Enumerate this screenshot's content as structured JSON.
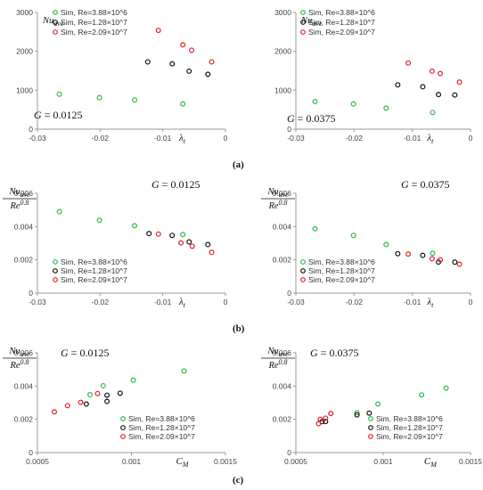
{
  "captions": [
    "(a)",
    "(b)",
    "(c)"
  ],
  "chart_data": [
    {
      "id": "a1",
      "type": "scatter",
      "ylabel": "Nu_ave",
      "xlabel": "λ_t",
      "annotation": "G = 0.0125",
      "xlim": [
        -0.03,
        0
      ],
      "ylim": [
        0,
        3000
      ],
      "xticks": [
        "-0.03",
        "-0.02",
        "-0.01",
        "0"
      ],
      "xtick_values": [
        -0.03,
        -0.02,
        -0.01,
        0
      ],
      "yticks": [
        "0",
        "1000",
        "2000",
        "3000"
      ],
      "ytick_values": [
        0,
        1000,
        2000,
        3000
      ],
      "legend_position": "top-left",
      "series": [
        {
          "name": "Sim, Re=3.88×10^6",
          "color": "#2db84b",
          "points": [
            [
              -0.0265,
              900
            ],
            [
              -0.0201,
              810
            ],
            [
              -0.0145,
              750
            ],
            [
              -0.0068,
              650
            ]
          ]
        },
        {
          "name": "Sim, Re=1.28×10^7",
          "color": "#111111",
          "points": [
            [
              -0.0124,
              1730
            ],
            [
              -0.0085,
              1680
            ],
            [
              -0.0058,
              1490
            ],
            [
              -0.0028,
              1410
            ]
          ]
        },
        {
          "name": "Sim, Re=2.09×10^7",
          "color": "#e0202a",
          "points": [
            [
              -0.0107,
              2540
            ],
            [
              -0.0068,
              2170
            ],
            [
              -0.0054,
              2030
            ],
            [
              -0.0022,
              1730
            ]
          ]
        }
      ]
    },
    {
      "id": "a2",
      "type": "scatter",
      "ylabel": "Nu_ave",
      "xlabel": "λ_t",
      "annotation": "G = 0.0375",
      "xlim": [
        -0.03,
        0
      ],
      "ylim": [
        0,
        3000
      ],
      "xticks": [
        "-0.03",
        "-0.02",
        "-0.01",
        "0"
      ],
      "xtick_values": [
        -0.03,
        -0.02,
        -0.01,
        0
      ],
      "yticks": [
        "0",
        "1000",
        "2000",
        "3000"
      ],
      "ytick_values": [
        0,
        1000,
        2000,
        3000
      ],
      "legend_position": "top-left",
      "series": [
        {
          "name": "Sim, Re=3.88×10^6",
          "color": "#2db84b",
          "points": [
            [
              -0.0267,
              710
            ],
            [
              -0.0201,
              650
            ],
            [
              -0.0145,
              540
            ],
            [
              -0.0065,
              430
            ]
          ]
        },
        {
          "name": "Sim, Re=1.28×10^7",
          "color": "#111111",
          "points": [
            [
              -0.0125,
              1140
            ],
            [
              -0.0082,
              1090
            ],
            [
              -0.0055,
              890
            ],
            [
              -0.0027,
              880
            ]
          ]
        },
        {
          "name": "Sim, Re=2.09×10^7",
          "color": "#e0202a",
          "points": [
            [
              -0.0107,
              1700
            ],
            [
              -0.0066,
              1490
            ],
            [
              -0.0052,
              1430
            ],
            [
              -0.0019,
              1210
            ]
          ]
        }
      ]
    },
    {
      "id": "b1",
      "type": "scatter",
      "ylabel": "Nu_ave / Re^0.8",
      "xlabel": "λ_t",
      "annotation": "G = 0.0125",
      "xlim": [
        -0.03,
        0
      ],
      "ylim": [
        0,
        0.006
      ],
      "xticks": [
        "-0.03",
        "-0.02",
        "-0.01",
        "0"
      ],
      "xtick_values": [
        -0.03,
        -0.02,
        -0.01,
        0
      ],
      "yticks": [
        "0",
        "0.002",
        "0.004",
        "0.006"
      ],
      "ytick_values": [
        0,
        0.002,
        0.004,
        0.006
      ],
      "legend_position": "bottom-left",
      "series": [
        {
          "name": "Sim, Re=3.88×10^6",
          "color": "#2db84b",
          "points": [
            [
              -0.0265,
              0.0049
            ],
            [
              -0.0201,
              0.00438
            ],
            [
              -0.0145,
              0.00405
            ],
            [
              -0.0068,
              0.00352
            ]
          ]
        },
        {
          "name": "Sim, Re=1.28×10^7",
          "color": "#111111",
          "points": [
            [
              -0.0122,
              0.00358
            ],
            [
              -0.0085,
              0.00347
            ],
            [
              -0.0058,
              0.00308
            ],
            [
              -0.0028,
              0.00292
            ]
          ]
        },
        {
          "name": "Sim, Re=2.09×10^7",
          "color": "#e0202a",
          "points": [
            [
              -0.0107,
              0.00355
            ],
            [
              -0.0071,
              0.00302
            ],
            [
              -0.0053,
              0.00282
            ],
            [
              -0.0022,
              0.00245
            ]
          ]
        }
      ]
    },
    {
      "id": "b2",
      "type": "scatter",
      "ylabel": "Nu_ave / Re^0.8",
      "xlabel": "λ_t",
      "annotation": "G = 0.0375",
      "xlim": [
        -0.03,
        0
      ],
      "ylim": [
        0,
        0.006
      ],
      "xticks": [
        "-0.03",
        "-0.02",
        "-0.01",
        "0"
      ],
      "xtick_values": [
        -0.03,
        -0.02,
        -0.01,
        0
      ],
      "yticks": [
        "0",
        "0.002",
        "0.004",
        "0.006"
      ],
      "ytick_values": [
        0,
        0.002,
        0.004,
        0.006
      ],
      "legend_position": "bottom-left",
      "series": [
        {
          "name": "Sim, Re=3.88×10^6",
          "color": "#2db84b",
          "points": [
            [
              -0.0267,
              0.00387
            ],
            [
              -0.0201,
              0.00347
            ],
            [
              -0.0145,
              0.00292
            ],
            [
              -0.0065,
              0.0024
            ]
          ]
        },
        {
          "name": "Sim, Re=1.28×10^7",
          "color": "#111111",
          "points": [
            [
              -0.0125,
              0.00237
            ],
            [
              -0.0082,
              0.00227
            ],
            [
              -0.0055,
              0.00187
            ],
            [
              -0.0027,
              0.00186
            ]
          ]
        },
        {
          "name": "Sim, Re=2.09×10^7",
          "color": "#e0202a",
          "points": [
            [
              -0.0107,
              0.00235
            ],
            [
              -0.0066,
              0.00207
            ],
            [
              -0.0052,
              0.002
            ],
            [
              -0.0019,
              0.00174
            ]
          ]
        }
      ]
    },
    {
      "id": "c1",
      "type": "scatter",
      "ylabel": "Nu_ave / Re^0.8",
      "xlabel": "C_M",
      "annotation": "G = 0.0125",
      "xlim": [
        0.0005,
        0.0015
      ],
      "ylim": [
        0,
        0.006
      ],
      "xticks": [
        "0.0005",
        "0.001",
        "0.0015"
      ],
      "xtick_values": [
        0.0005,
        0.001,
        0.0015
      ],
      "yticks": [
        "0",
        "0.002",
        "0.004",
        "0.006"
      ],
      "ytick_values": [
        0,
        0.002,
        0.004,
        0.006
      ],
      "legend_position": "bottom-right",
      "series": [
        {
          "name": "Sim, Re=3.88×10^6",
          "color": "#2db84b",
          "points": [
            [
              0.00078,
              0.00348
            ],
            [
              0.00085,
              0.00402
            ],
            [
              0.00101,
              0.00435
            ],
            [
              0.00128,
              0.0049
            ]
          ]
        },
        {
          "name": "Sim, Re=1.28×10^7",
          "color": "#111111",
          "points": [
            [
              0.00076,
              0.00292
            ],
            [
              0.00087,
              0.00308
            ],
            [
              0.00087,
              0.00345
            ],
            [
              0.00094,
              0.00357
            ]
          ]
        },
        {
          "name": "Sim, Re=2.09×10^7",
          "color": "#e0202a",
          "points": [
            [
              0.00059,
              0.00245
            ],
            [
              0.00066,
              0.00282
            ],
            [
              0.00073,
              0.00302
            ],
            [
              0.00082,
              0.00355
            ]
          ]
        }
      ]
    },
    {
      "id": "c2",
      "type": "scatter",
      "ylabel": "Nu_ave / Re^0.8",
      "xlabel": "C_M",
      "annotation": "G = 0.0375",
      "xlim": [
        0.0005,
        0.0015
      ],
      "ylim": [
        0,
        0.006
      ],
      "xticks": [
        "0.0005",
        "0.001",
        "0.0015"
      ],
      "xtick_values": [
        0.0005,
        0.001,
        0.0015
      ],
      "yticks": [
        "0",
        "0.002",
        "0.004",
        "0.006"
      ],
      "ytick_values": [
        0,
        0.002,
        0.004,
        0.006
      ],
      "legend_position": "bottom-right",
      "series": [
        {
          "name": "Sim, Re=3.88×10^6",
          "color": "#2db84b",
          "points": [
            [
              0.00085,
              0.0024
            ],
            [
              0.00097,
              0.00292
            ],
            [
              0.00122,
              0.00347
            ],
            [
              0.00136,
              0.00387
            ]
          ]
        },
        {
          "name": "Sim, Re=1.28×10^7",
          "color": "#111111",
          "points": [
            [
              0.00065,
              0.00186
            ],
            [
              0.00067,
              0.00187
            ],
            [
              0.00085,
              0.00227
            ],
            [
              0.00092,
              0.00237
            ]
          ]
        },
        {
          "name": "Sim, Re=2.09×10^7",
          "color": "#e0202a",
          "points": [
            [
              0.00063,
              0.00174
            ],
            [
              0.00064,
              0.002
            ],
            [
              0.00067,
              0.00207
            ],
            [
              0.0007,
              0.00235
            ]
          ]
        }
      ]
    }
  ]
}
